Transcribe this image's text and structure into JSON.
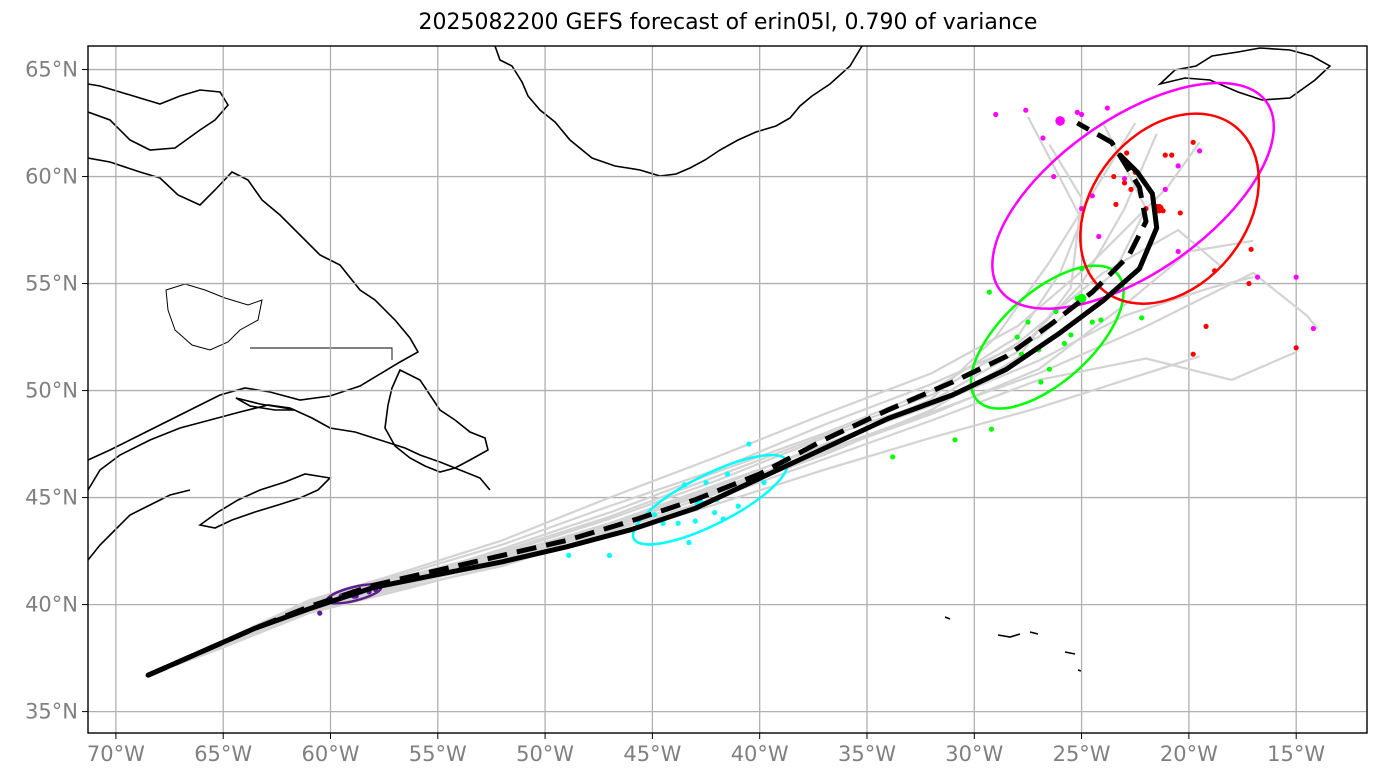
{
  "title": "2025082200 GEFS forecast of erin05l, 0.790 of variance",
  "map": {
    "lon_range": [
      -71.3,
      -11.7
    ],
    "lat_range": [
      34.0,
      66.1
    ],
    "lat_ticks": [
      {
        "value": 65,
        "label": "65°N"
      },
      {
        "value": 60,
        "label": "60°N"
      },
      {
        "value": 55,
        "label": "55°N"
      },
      {
        "value": 50,
        "label": "50°N"
      },
      {
        "value": 45,
        "label": "45°N"
      },
      {
        "value": 40,
        "label": "40°N"
      },
      {
        "value": 35,
        "label": "35°N"
      }
    ],
    "lon_ticks": [
      {
        "value": -70,
        "label": "70°W"
      },
      {
        "value": -65,
        "label": "65°W"
      },
      {
        "value": -60,
        "label": "60°W"
      },
      {
        "value": -55,
        "label": "55°W"
      },
      {
        "value": -50,
        "label": "50°W"
      },
      {
        "value": -45,
        "label": "45°W"
      },
      {
        "value": -40,
        "label": "40°W"
      },
      {
        "value": -35,
        "label": "35°W"
      },
      {
        "value": -30,
        "label": "30°W"
      },
      {
        "value": -25,
        "label": "25°W"
      },
      {
        "value": -20,
        "label": "20°W"
      },
      {
        "value": -15,
        "label": "15°W"
      }
    ]
  },
  "colors": {
    "ensemble": "#d3d3d3",
    "mean_track": "#000000",
    "ellipses": [
      "#5b1f8f",
      "#00ffff",
      "#00ff00",
      "#ff00ff",
      "#ff0000"
    ],
    "coast": "#000000",
    "grid": "#b0b0b0"
  },
  "tracks": {
    "mean_solid": [
      [
        -68.5,
        36.7
      ],
      [
        -66,
        37.8
      ],
      [
        -63.5,
        38.9
      ],
      [
        -61,
        39.8
      ],
      [
        -58,
        40.8
      ],
      [
        -55,
        41.4
      ],
      [
        -52,
        42.0
      ],
      [
        -49,
        42.7
      ],
      [
        -46,
        43.5
      ],
      [
        -43,
        44.5
      ],
      [
        -40,
        45.9
      ],
      [
        -37,
        47.3
      ],
      [
        -34,
        48.7
      ],
      [
        -31,
        49.8
      ],
      [
        -28.5,
        51.0
      ],
      [
        -26,
        52.7
      ],
      [
        -24,
        54.2
      ],
      [
        -22.3,
        55.7
      ],
      [
        -21.5,
        57.6
      ],
      [
        -21.7,
        59.2
      ],
      [
        -22.4,
        60.2
      ],
      [
        -23.2,
        61.0
      ]
    ],
    "mean_dashed": [
      [
        -68.5,
        36.7
      ],
      [
        -66,
        37.8
      ],
      [
        -63.5,
        38.9
      ],
      [
        -61,
        39.9
      ],
      [
        -58,
        40.9
      ],
      [
        -55,
        41.6
      ],
      [
        -52,
        42.3
      ],
      [
        -49,
        43.0
      ],
      [
        -46,
        43.9
      ],
      [
        -43,
        44.9
      ],
      [
        -40,
        46.1
      ],
      [
        -37,
        47.7
      ],
      [
        -34,
        49.1
      ],
      [
        -31,
        50.4
      ],
      [
        -28.5,
        51.6
      ],
      [
        -26.3,
        53.2
      ],
      [
        -24.5,
        54.6
      ],
      [
        -22.8,
        56.3
      ],
      [
        -22.0,
        57.9
      ],
      [
        -22.3,
        59.5
      ],
      [
        -23.6,
        61.6
      ],
      [
        -25.2,
        62.5
      ]
    ],
    "ensemble": [
      [
        [
          -68.5,
          36.7
        ],
        [
          -65,
          38.3
        ],
        [
          -61,
          40.1
        ],
        [
          -57,
          41.3
        ],
        [
          -52,
          42.8
        ],
        [
          -47,
          44.6
        ],
        [
          -42,
          46.3
        ],
        [
          -37,
          48.4
        ],
        [
          -32,
          50.3
        ],
        [
          -27,
          52.5
        ],
        [
          -23.5,
          55.5
        ],
        [
          -22,
          58.5
        ],
        [
          -24,
          62.5
        ]
      ],
      [
        [
          -68.5,
          36.7
        ],
        [
          -65,
          38.0
        ],
        [
          -61,
          39.7
        ],
        [
          -57,
          40.7
        ],
        [
          -52,
          41.8
        ],
        [
          -47,
          43.4
        ],
        [
          -42,
          45.0
        ],
        [
          -37,
          46.8
        ],
        [
          -32,
          48.6
        ],
        [
          -27,
          50.5
        ],
        [
          -22,
          51.5
        ],
        [
          -18,
          50.5
        ],
        [
          -15,
          51.8
        ]
      ],
      [
        [
          -68.5,
          36.7
        ],
        [
          -65,
          38.2
        ],
        [
          -61,
          39.9
        ],
        [
          -57,
          41.1
        ],
        [
          -52,
          42.4
        ],
        [
          -47,
          44.0
        ],
        [
          -42,
          45.8
        ],
        [
          -37,
          47.8
        ],
        [
          -32,
          49.5
        ],
        [
          -28,
          51.8
        ],
        [
          -25,
          55.0
        ],
        [
          -23,
          58.5
        ],
        [
          -21.5,
          62.0
        ]
      ],
      [
        [
          -68.5,
          36.7
        ],
        [
          -65,
          38.1
        ],
        [
          -61,
          39.8
        ],
        [
          -57,
          40.9
        ],
        [
          -52,
          42.1
        ],
        [
          -47,
          43.6
        ],
        [
          -42,
          45.4
        ],
        [
          -37,
          47.2
        ],
        [
          -32,
          49.0
        ],
        [
          -27,
          50.8
        ],
        [
          -22,
          53.0
        ],
        [
          -17,
          55.5
        ],
        [
          -14.5,
          53.5
        ],
        [
          -14,
          52.9
        ]
      ],
      [
        [
          -68.5,
          36.7
        ],
        [
          -65,
          38.2
        ],
        [
          -61,
          39.9
        ],
        [
          -57,
          41.0
        ],
        [
          -52,
          42.6
        ],
        [
          -47,
          44.3
        ],
        [
          -42,
          46.2
        ],
        [
          -37,
          48.0
        ],
        [
          -32,
          50.0
        ],
        [
          -28,
          52.5
        ],
        [
          -26,
          55.5
        ],
        [
          -25,
          58.0
        ],
        [
          -27.5,
          62.8
        ]
      ],
      [
        [
          -68.5,
          36.7
        ],
        [
          -65,
          38.0
        ],
        [
          -61,
          39.6
        ],
        [
          -57,
          40.6
        ],
        [
          -52,
          41.9
        ],
        [
          -47,
          43.2
        ],
        [
          -42,
          44.7
        ],
        [
          -37,
          46.3
        ],
        [
          -32,
          47.8
        ],
        [
          -27,
          49.2
        ],
        [
          -22,
          50.8
        ],
        [
          -19.5,
          51.6
        ]
      ],
      [
        [
          -68.5,
          36.7
        ],
        [
          -65,
          38.3
        ],
        [
          -61,
          40.2
        ],
        [
          -57,
          41.4
        ],
        [
          -52,
          43.0
        ],
        [
          -47,
          45.0
        ],
        [
          -42,
          46.9
        ],
        [
          -37,
          48.9
        ],
        [
          -32,
          50.8
        ],
        [
          -28,
          53.0
        ],
        [
          -24.5,
          56.0
        ],
        [
          -21,
          59.5
        ],
        [
          -19.5,
          61.6
        ]
      ],
      [
        [
          -68.5,
          36.7
        ],
        [
          -65,
          38.1
        ],
        [
          -61,
          39.8
        ],
        [
          -57,
          40.8
        ],
        [
          -52,
          42.2
        ],
        [
          -47,
          43.7
        ],
        [
          -42,
          45.5
        ],
        [
          -37,
          47.5
        ],
        [
          -32,
          49.3
        ],
        [
          -27,
          51.4
        ],
        [
          -23,
          53.5
        ],
        [
          -19,
          54.8
        ],
        [
          -17,
          55.3
        ]
      ],
      [
        [
          -68.5,
          36.7
        ],
        [
          -65,
          38.2
        ],
        [
          -61,
          40.0
        ],
        [
          -57,
          41.2
        ],
        [
          -52,
          42.5
        ],
        [
          -47,
          44.1
        ],
        [
          -42,
          46.0
        ],
        [
          -37,
          47.9
        ],
        [
          -32,
          49.8
        ],
        [
          -28,
          52.2
        ],
        [
          -24,
          55.5
        ],
        [
          -20.5,
          57.5
        ],
        [
          -18.5,
          55.8
        ]
      ],
      [
        [
          -68.5,
          36.7
        ],
        [
          -65,
          38.0
        ],
        [
          -61,
          39.7
        ],
        [
          -57,
          40.8
        ],
        [
          -52,
          42.0
        ],
        [
          -47,
          43.5
        ],
        [
          -42,
          45.2
        ],
        [
          -37,
          47.0
        ],
        [
          -32,
          49.1
        ],
        [
          -28,
          51.5
        ],
        [
          -25.5,
          54.8
        ],
        [
          -25,
          59.0
        ],
        [
          -26.5,
          61.5
        ]
      ],
      [
        [
          -68.5,
          36.7
        ],
        [
          -65,
          38.2
        ],
        [
          -61,
          39.9
        ],
        [
          -57,
          41.0
        ],
        [
          -52,
          42.3
        ],
        [
          -47,
          43.8
        ],
        [
          -42,
          45.6
        ],
        [
          -37,
          47.4
        ],
        [
          -32,
          49.6
        ],
        [
          -29,
          52.5
        ],
        [
          -26.5,
          56.0
        ],
        [
          -24,
          60.0
        ],
        [
          -22.5,
          62.5
        ]
      ],
      [
        [
          -68.5,
          36.7
        ],
        [
          -65,
          38.1
        ],
        [
          -61,
          39.8
        ],
        [
          -57,
          40.9
        ],
        [
          -52,
          42.2
        ],
        [
          -47,
          43.7
        ],
        [
          -42,
          45.3
        ],
        [
          -37,
          47.1
        ],
        [
          -32,
          48.9
        ],
        [
          -27,
          51.0
        ],
        [
          -23,
          54.0
        ],
        [
          -20,
          56.5
        ],
        [
          -17,
          57.0
        ]
      ]
    ]
  },
  "ellipses": [
    {
      "name": "purple",
      "color": "#5b1f8f",
      "cx": -58.9,
      "cy": 40.5,
      "rx": 1.3,
      "ry": 0.32,
      "angle_deg": 14,
      "points": [
        [
          -59.5,
          40.4
        ],
        [
          -59.0,
          40.5
        ],
        [
          -58.6,
          40.6
        ],
        [
          -58.2,
          40.6
        ],
        [
          -59.8,
          40.2
        ],
        [
          -60.5,
          39.6
        ],
        [
          -58.8,
          40.4
        ],
        [
          -57.9,
          40.7
        ]
      ],
      "center": [
        -58.9,
        40.5
      ]
    },
    {
      "name": "cyan",
      "color": "#00ffff",
      "cx": -42.3,
      "cy": 44.9,
      "rx": 4.0,
      "ry": 1.15,
      "angle_deg": 27,
      "points": [
        [
          -43.5,
          45.6
        ],
        [
          -42.5,
          45.7
        ],
        [
          -41.5,
          46.1
        ],
        [
          -40.5,
          47.5
        ],
        [
          -44.5,
          43.8
        ],
        [
          -43.0,
          43.9
        ],
        [
          -41.7,
          44.0
        ],
        [
          -44.9,
          44.2
        ],
        [
          -47.0,
          42.3
        ],
        [
          -48.9,
          42.3
        ],
        [
          -43.3,
          42.9
        ],
        [
          -42.1,
          44.3
        ],
        [
          -40.9,
          45.5
        ],
        [
          -39.8,
          45.7
        ],
        [
          -43.8,
          43.8
        ],
        [
          -42.0,
          44.9
        ],
        [
          -41.0,
          44.6
        ]
      ],
      "center": [
        -42.8,
        44.7
      ]
    },
    {
      "name": "green",
      "color": "#00ff00",
      "cx": -26.6,
      "cy": 52.5,
      "rx": 4.4,
      "ry": 2.1,
      "angle_deg": 42,
      "points": [
        [
          -25.2,
          54.3
        ],
        [
          -25.0,
          55.7
        ],
        [
          -26.2,
          53.7
        ],
        [
          -27.0,
          51.9
        ],
        [
          -27.5,
          53.2
        ],
        [
          -26.9,
          50.4
        ],
        [
          -29.3,
          54.6
        ],
        [
          -24.5,
          53.2
        ],
        [
          -22.2,
          53.4
        ],
        [
          -24.1,
          53.3
        ],
        [
          -25.8,
          52.2
        ],
        [
          -26.5,
          51.0
        ],
        [
          -28.0,
          52.5
        ],
        [
          -30.9,
          47.7
        ],
        [
          -29.2,
          48.2
        ],
        [
          -33.8,
          46.9
        ],
        [
          -27.8,
          51.7
        ],
        [
          -25.5,
          52.6
        ]
      ],
      "center": [
        -25.0,
        54.3
      ]
    },
    {
      "name": "magenta",
      "color": "#ff00ff",
      "cx": -22.6,
      "cy": 59.1,
      "rx": 7.6,
      "ry": 3.6,
      "angle_deg": 35,
      "points": [
        [
          -23.0,
          59.9
        ],
        [
          -25.0,
          62.9
        ],
        [
          -25.2,
          63.0
        ],
        [
          -23.8,
          63.2
        ],
        [
          -27.6,
          63.1
        ],
        [
          -29.0,
          62.9
        ],
        [
          -26.8,
          61.8
        ],
        [
          -24.5,
          59.1
        ],
        [
          -25.0,
          58.5
        ],
        [
          -21.5,
          58.5
        ],
        [
          -20.5,
          60.5
        ],
        [
          -19.5,
          61.2
        ],
        [
          -16.8,
          55.3
        ],
        [
          -15.0,
          55.3
        ],
        [
          -14.2,
          52.9
        ],
        [
          -20.5,
          56.5
        ],
        [
          -24.2,
          57.2
        ],
        [
          -26.3,
          60.0
        ],
        [
          -21.1,
          59.4
        ]
      ],
      "center": [
        -26.0,
        62.6
      ]
    },
    {
      "name": "red",
      "color": "#ff0000",
      "cx": -20.9,
      "cy": 58.5,
      "rx": 4.9,
      "ry": 3.6,
      "angle_deg": 51,
      "points": [
        [
          -22.9,
          61.1
        ],
        [
          -22.5,
          60.2
        ],
        [
          -23.0,
          59.7
        ],
        [
          -21.5,
          58.6
        ],
        [
          -21.2,
          58.4
        ],
        [
          -20.4,
          58.3
        ],
        [
          -19.8,
          61.6
        ],
        [
          -21.1,
          61.0
        ],
        [
          -20.8,
          61.0
        ],
        [
          -23.5,
          60.0
        ],
        [
          -22.7,
          59.4
        ],
        [
          -17.1,
          56.6
        ],
        [
          -17.2,
          55.0
        ],
        [
          -18.8,
          55.6
        ],
        [
          -19.2,
          53.0
        ],
        [
          -19.8,
          51.7
        ],
        [
          -15.0,
          52.0
        ],
        [
          -22.0,
          58.5
        ],
        [
          -23.4,
          58.7
        ]
      ],
      "center": [
        -21.4,
        58.5
      ]
    }
  ]
}
